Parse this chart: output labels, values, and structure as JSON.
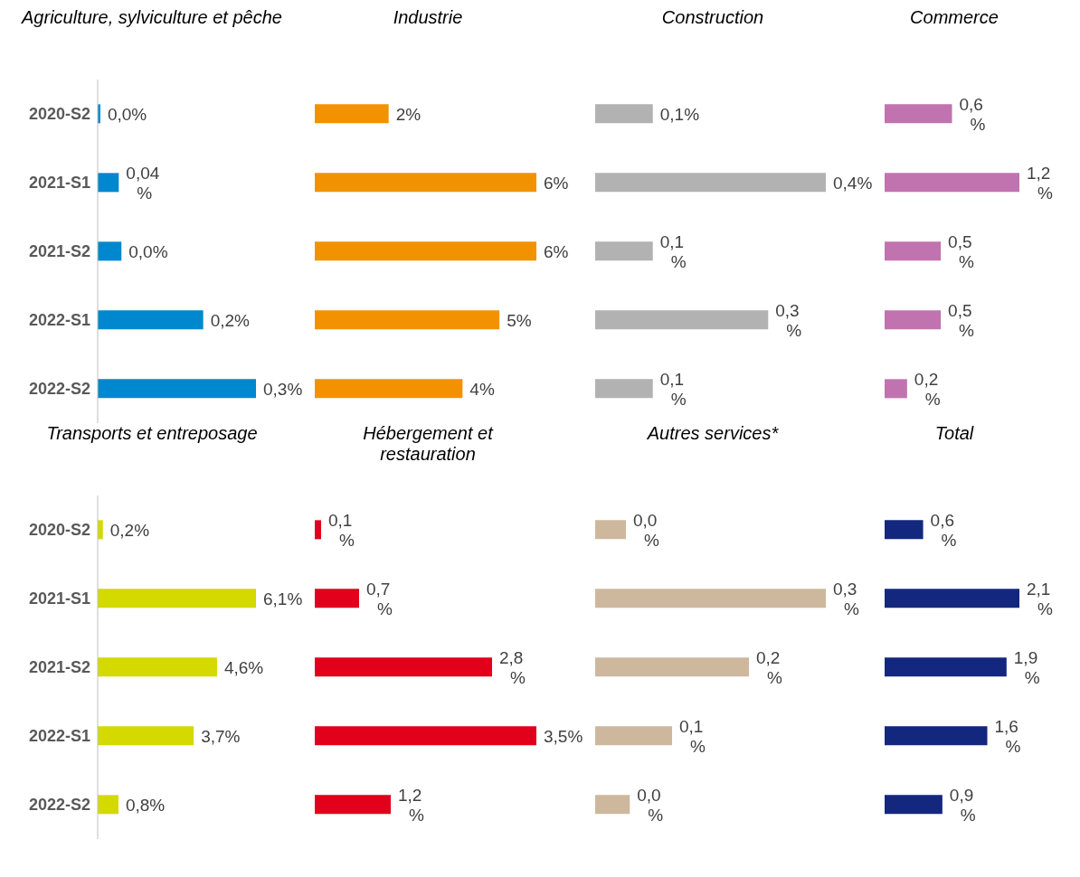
{
  "chart_data": [
    {
      "type": "bar",
      "orientation": "horizontal",
      "title": "Agriculture, sylviculture et pêche",
      "categories": [
        "2020-S2",
        "2021-S1",
        "2021-S2",
        "2022-S1",
        "2022-S2"
      ],
      "values": [
        0.005,
        0.04,
        0.045,
        0.2,
        0.3
      ],
      "value_labels": [
        "0,0%",
        "0,04 %",
        "0,0%",
        "0,2%",
        "0,3%"
      ],
      "color": "#0088ce",
      "tick_labels": "y"
    },
    {
      "type": "bar",
      "orientation": "horizontal",
      "title": "Industrie",
      "categories": [
        null,
        null,
        null,
        null,
        null
      ],
      "values": [
        2,
        6,
        6,
        5,
        4
      ],
      "value_labels": [
        "2%",
        "6%",
        "6%",
        "5%",
        "4%"
      ],
      "color": "#f39200",
      "tick_labels": false
    },
    {
      "type": "bar",
      "orientation": "horizontal",
      "title": "Construction",
      "categories": [
        null,
        null,
        null,
        null,
        null
      ],
      "values": [
        0.1,
        0.4,
        0.1,
        0.3,
        0.1
      ],
      "value_labels": [
        "0,1%",
        "0,4%",
        "0,1 %",
        "0,3 %",
        "0,1 %"
      ],
      "color": "#b2b2b2",
      "tick_labels": false
    },
    {
      "type": "bar",
      "orientation": "horizontal",
      "title": "Commerce",
      "categories": [
        null,
        null,
        null,
        null,
        null
      ],
      "values": [
        0.6,
        1.2,
        0.5,
        0.5,
        0.2
      ],
      "value_labels": [
        "0,6 %",
        "1,2 %",
        "0,5 %",
        "0,5 %",
        "0,2 %"
      ],
      "color": "#c173b0",
      "tick_labels": false
    },
    {
      "type": "bar",
      "orientation": "horizontal",
      "title": "Transports et entreposage",
      "categories": [
        "2020-S2",
        "2021-S1",
        "2021-S2",
        "2022-S1",
        "2022-S2"
      ],
      "values": [
        0.2,
        6.1,
        4.6,
        3.7,
        0.8
      ],
      "value_labels": [
        "0,2%",
        "6,1%",
        "4,6%",
        "3,7%",
        "0,8%"
      ],
      "color": "#d4d900",
      "tick_labels": "y"
    },
    {
      "type": "bar",
      "orientation": "horizontal",
      "title": "Hébergement et restauration",
      "categories": [
        null,
        null,
        null,
        null,
        null
      ],
      "values": [
        0.1,
        0.7,
        2.8,
        3.5,
        1.2
      ],
      "value_labels": [
        "0,1 %",
        "0,7 %",
        "2,8 %",
        "3,5%",
        "1,2 %"
      ],
      "color": "#e2001a",
      "tick_labels": false
    },
    {
      "type": "bar",
      "orientation": "horizontal",
      "title": "Autres services*",
      "categories": [
        null,
        null,
        null,
        null,
        null
      ],
      "values": [
        0.04,
        0.3,
        0.2,
        0.1,
        0.045
      ],
      "value_labels": [
        "0,0 %",
        "0,3 %",
        "0,2 %",
        "0,1 %",
        "0,0 %"
      ],
      "color": "#cdb89e",
      "tick_labels": false
    },
    {
      "type": "bar",
      "orientation": "horizontal",
      "title": "Total",
      "categories": [
        null,
        null,
        null,
        null,
        null
      ],
      "values": [
        0.6,
        2.1,
        1.9,
        1.6,
        0.9
      ],
      "value_labels": [
        "0,6 %",
        "2,1 %",
        "1,9 %",
        "1,6 %",
        "0,9 %"
      ],
      "color": "#13277f",
      "tick_labels": false
    }
  ]
}
